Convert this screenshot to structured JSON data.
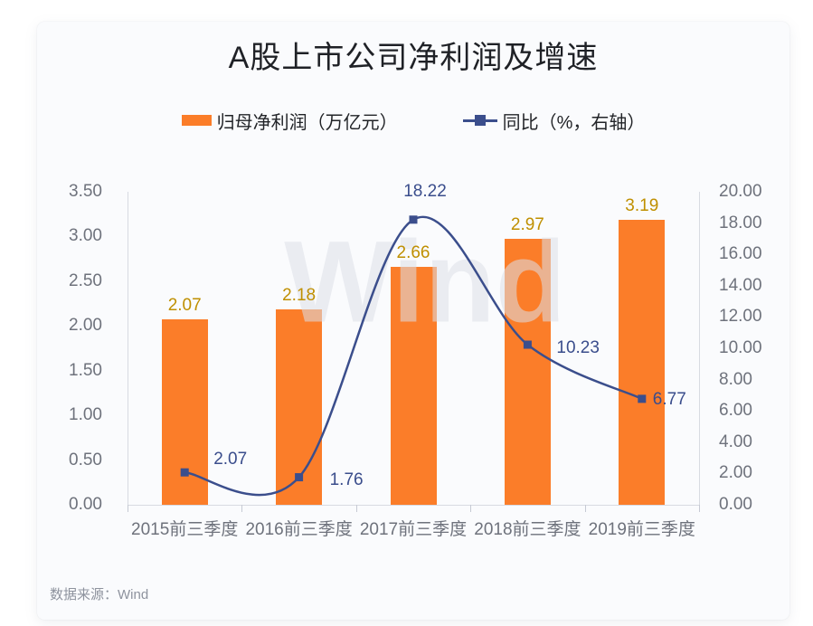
{
  "title": "A股上市公司净利润及增速",
  "legend": [
    {
      "label": "归母净利润（万亿元）",
      "type": "bar",
      "color": "#fb7d29"
    },
    {
      "label": "同比（%，右轴）",
      "type": "line",
      "color": "#3b4e8c"
    }
  ],
  "watermark": "Wind",
  "source_note": "数据来源：Wind",
  "colors": {
    "bar": "#fb7d29",
    "line": "#3b4e8c",
    "bar_label": "#bf8f00",
    "line_label": "#3a4d8c",
    "axis": "#d8dbe2",
    "tick_text": "#6e727c",
    "card_bg": "#fafbfd"
  },
  "chart_data": {
    "type": "bar+line combo",
    "title": "A股上市公司净利润及增速",
    "categories": [
      "2015前三季度",
      "2016前三季度",
      "2017前三季度",
      "2018前三季度",
      "2019前三季度"
    ],
    "series": [
      {
        "name": "归母净利润（万亿元）",
        "type": "bar",
        "axis": "left",
        "values": [
          2.07,
          2.18,
          2.66,
          2.97,
          3.19
        ],
        "labels": [
          "2.07",
          "2.18",
          "2.66",
          "2.97",
          "3.19"
        ],
        "color": "#fb7d29"
      },
      {
        "name": "同比（%，右轴）",
        "type": "line",
        "axis": "right",
        "values": [
          2.07,
          1.76,
          18.22,
          10.23,
          6.77
        ],
        "labels": [
          "2.07",
          "1.76",
          "18.22",
          "10.23",
          "6.77"
        ],
        "color": "#3b4e8c",
        "smooth": true,
        "marker": "square"
      }
    ],
    "left_axis": {
      "min": 0,
      "max": 3.5,
      "ticks": [
        "3.50",
        "3.00",
        "2.50",
        "2.00",
        "1.50",
        "1.00",
        "0.50",
        "0.00"
      ]
    },
    "right_axis": {
      "min": 0,
      "max": 20.0,
      "ticks": [
        "20.00",
        "18.00",
        "16.00",
        "14.00",
        "12.00",
        "10.00",
        "8.00",
        "6.00",
        "4.00",
        "2.00",
        "0.00"
      ]
    },
    "grid": false,
    "legend_position": "top-center"
  }
}
